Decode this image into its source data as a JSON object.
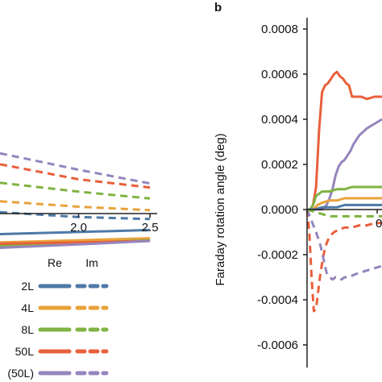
{
  "chart_data": [
    {
      "panel": "left",
      "type": "line",
      "x_tick_labels": [
        "2.0",
        "2.5"
      ],
      "x_ticks": [
        2.0,
        2.5
      ],
      "xlim": [
        1.45,
        2.55
      ],
      "ylim": [
        -1.0,
        1.0
      ],
      "ylabel": "",
      "legend": {
        "placement": "bottom",
        "column_headers": [
          "Re",
          "Im"
        ],
        "entries": [
          {
            "label": "2L",
            "color": "#4e79a7"
          },
          {
            "label": "4L",
            "color": "#e8a23a"
          },
          {
            "label": "8L",
            "color": "#7fb342"
          },
          {
            "label": "50L",
            "color": "#e8603c"
          },
          {
            "label": "(50L)",
            "color": "#9585bd"
          }
        ]
      },
      "series": [
        {
          "color": "#4e79a7",
          "style": "dashed",
          "x": [
            1.45,
            2.0,
            2.5
          ],
          "y": [
            0.02,
            -0.05,
            -0.08
          ]
        },
        {
          "color": "#e8a23a",
          "style": "dashed",
          "x": [
            1.45,
            2.0,
            2.5
          ],
          "y": [
            0.18,
            0.1,
            0.05
          ]
        },
        {
          "color": "#7fb342",
          "style": "dashed",
          "x": [
            1.45,
            2.0,
            2.5
          ],
          "y": [
            0.45,
            0.32,
            0.22
          ]
        },
        {
          "color": "#e8603c",
          "style": "dashed",
          "x": [
            1.45,
            2.0,
            2.5
          ],
          "y": [
            0.72,
            0.5,
            0.38
          ]
        },
        {
          "color": "#9585bd",
          "style": "dashed",
          "x": [
            1.45,
            2.0,
            2.5
          ],
          "y": [
            0.88,
            0.64,
            0.44
          ]
        },
        {
          "color": "#4e79a7",
          "style": "solid",
          "x": [
            1.45,
            2.0,
            2.5
          ],
          "y": [
            -0.3,
            -0.27,
            -0.24
          ]
        },
        {
          "color": "#e8a23a",
          "style": "solid",
          "x": [
            1.45,
            2.0,
            2.5
          ],
          "y": [
            -0.42,
            -0.39,
            -0.36
          ]
        },
        {
          "color": "#7fb342",
          "style": "solid",
          "x": [
            1.45,
            2.0,
            2.5
          ],
          "y": [
            -0.47,
            -0.43,
            -0.39
          ]
        },
        {
          "color": "#e8603c",
          "style": "solid",
          "x": [
            1.45,
            2.0,
            2.5
          ],
          "y": [
            -0.44,
            -0.42,
            -0.4
          ]
        },
        {
          "color": "#9585bd",
          "style": "solid",
          "x": [
            1.45,
            2.0,
            2.5
          ],
          "y": [
            -0.5,
            -0.45,
            -0.4
          ]
        }
      ]
    },
    {
      "panel": "b",
      "type": "line",
      "title": "b",
      "ylabel": "Faraday rotation angle (deg)",
      "xlabel": "",
      "ylim": [
        -0.0007,
        0.00085
      ],
      "y_ticks": [
        0.0008,
        0.0006,
        0.0004,
        0.0002,
        0.0,
        -0.0002,
        -0.0004,
        -0.0006
      ],
      "y_tick_labels": [
        "0.0008",
        "0.0006",
        "0.0004",
        "0.0002",
        "0.0000",
        "-0.0002",
        "-0.0004",
        "-0.0006"
      ],
      "x_partial_tick_label": "0",
      "xlim": [
        0.0,
        1.0
      ],
      "series": [
        {
          "color": "#e8603c",
          "style": "solid",
          "x": [
            0.0,
            0.04,
            0.08,
            0.12,
            0.16,
            0.2,
            0.24,
            0.28,
            0.32,
            0.36,
            0.4,
            0.44,
            0.48,
            0.52,
            0.56,
            0.6,
            0.66,
            0.72,
            0.8,
            0.9,
            1.0
          ],
          "y": [
            0.0,
            0.0,
            2e-05,
            0.0001,
            0.00035,
            0.00052,
            0.00055,
            0.00056,
            0.00058,
            0.0006,
            0.00061,
            0.00059,
            0.00058,
            0.00056,
            0.00055,
            0.0005,
            0.0005,
            0.0005,
            0.00049,
            0.0005,
            0.0005
          ]
        },
        {
          "color": "#9585bd",
          "style": "solid",
          "x": [
            0.0,
            0.1,
            0.2,
            0.26,
            0.3,
            0.34,
            0.38,
            0.42,
            0.46,
            0.5,
            0.54,
            0.58,
            0.62,
            0.66,
            0.7,
            0.8,
            0.9,
            1.0
          ],
          "y": [
            0.0,
            0.0,
            0.0,
            2e-05,
            5e-05,
            9e-05,
            0.00015,
            0.00019,
            0.00021,
            0.00022,
            0.00024,
            0.00026,
            0.00029,
            0.00031,
            0.00033,
            0.00036,
            0.00038,
            0.0004
          ]
        },
        {
          "color": "#7fb342",
          "style": "solid",
          "x": [
            0.0,
            0.04,
            0.08,
            0.12,
            0.16,
            0.2,
            0.3,
            0.4,
            0.5,
            0.6,
            0.7,
            0.8,
            0.9,
            1.0
          ],
          "y": [
            0.0,
            0.0,
            2e-05,
            6e-05,
            7e-05,
            8e-05,
            8e-05,
            9e-05,
            9e-05,
            0.0001,
            0.0001,
            0.0001,
            0.0001,
            0.0001
          ]
        },
        {
          "color": "#e8a23a",
          "style": "solid",
          "x": [
            0.0,
            0.08,
            0.14,
            0.2,
            0.3,
            0.4,
            0.5,
            0.6,
            0.7,
            0.8,
            0.9,
            1.0
          ],
          "y": [
            0.0,
            0.0,
            2e-05,
            3e-05,
            4e-05,
            4e-05,
            5e-05,
            5e-05,
            5e-05,
            5e-05,
            5e-05,
            5e-05
          ]
        },
        {
          "color": "#4e79a7",
          "style": "solid",
          "x": [
            0.0,
            0.1,
            0.2,
            0.3,
            0.4,
            0.5,
            0.6,
            0.7,
            0.8,
            0.9,
            1.0
          ],
          "y": [
            0.0,
            0.0,
            1e-05,
            1e-05,
            1e-05,
            2e-05,
            2e-05,
            2e-05,
            2e-05,
            2e-05,
            2e-05
          ]
        },
        {
          "color": "#e8603c",
          "style": "dashed",
          "x": [
            0.0,
            0.03,
            0.06,
            0.09,
            0.12,
            0.15,
            0.18,
            0.22,
            0.26,
            0.3,
            0.36,
            0.42,
            0.5,
            0.6,
            0.7,
            0.8,
            0.9,
            1.0
          ],
          "y": [
            0.0,
            -0.0001,
            -0.0003,
            -0.00045,
            -0.00044,
            -0.00036,
            -0.00028,
            -0.0002,
            -0.00015,
            -0.00012,
            -0.0001,
            -9e-05,
            -8e-05,
            -8e-05,
            -7e-05,
            -7e-05,
            -6e-05,
            -6e-05
          ]
        },
        {
          "color": "#9585bd",
          "style": "dashed",
          "x": [
            0.0,
            0.06,
            0.12,
            0.18,
            0.22,
            0.26,
            0.3,
            0.34,
            0.38,
            0.42,
            0.46,
            0.5,
            0.56,
            0.62,
            0.7,
            0.8,
            0.9,
            1.0
          ],
          "y": [
            0.0,
            -5e-05,
            -0.0001,
            -0.00016,
            -0.00022,
            -0.00028,
            -0.0003,
            -0.00031,
            -0.0003,
            -0.0003,
            -0.00031,
            -0.0003,
            -0.0003,
            -0.00029,
            -0.00028,
            -0.00027,
            -0.00026,
            -0.00025
          ]
        },
        {
          "color": "#7fb342",
          "style": "dashed",
          "x": [
            0.0,
            0.1,
            0.2,
            0.3,
            0.4,
            0.5,
            0.6,
            0.7,
            0.8,
            0.9,
            1.0
          ],
          "y": [
            0.0,
            -1e-05,
            -2e-05,
            -3e-05,
            -3e-05,
            -3e-05,
            -3e-05,
            -3e-05,
            -3e-05,
            -3e-05,
            -3e-05
          ]
        }
      ]
    }
  ]
}
